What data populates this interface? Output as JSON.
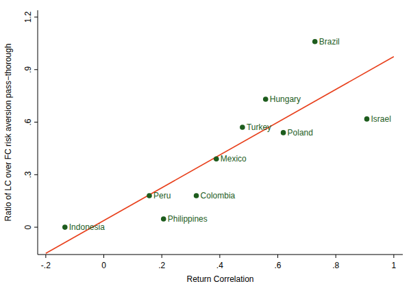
{
  "chart_data": {
    "type": "scatter",
    "x_label": "Return Correlation",
    "y_label": "Ratio of LC over FC risk aversion pass−thorough",
    "xlim": [
      -0.228,
      1.031
    ],
    "ylim": [
      -0.156,
      1.239
    ],
    "xticks": [
      {
        "value": -0.2,
        "label": "-.2"
      },
      0,
      {
        "value": 0.2,
        "label": ".2"
      },
      {
        "value": 0.4,
        "label": ".4"
      },
      {
        "value": 0.6,
        "label": ".6"
      },
      {
        "value": 0.8,
        "label": ".8"
      },
      1
    ],
    "yticks": [
      0,
      {
        "value": 0.3,
        "label": ".3"
      },
      {
        "value": 0.6,
        "label": ".6"
      },
      {
        "value": 0.9,
        "label": ".9"
      },
      1.2
    ],
    "grid": false,
    "series": [
      {
        "type": "scatter",
        "color": "#1d5c1d",
        "marker": "circle",
        "labels": [
          "Indonesia",
          "Peru",
          "Philippines",
          "Colombia",
          "Mexico",
          "Turkey",
          "Hungary",
          "Poland",
          "Israel",
          "Brazil"
        ],
        "x": [
          -0.134,
          0.157,
          0.206,
          0.319,
          0.388,
          0.478,
          0.558,
          0.619,
          0.907,
          0.728
        ],
        "values": [
          0.0,
          0.18,
          0.047,
          0.18,
          0.39,
          0.571,
          0.731,
          0.54,
          0.618,
          1.06
        ]
      },
      {
        "type": "line",
        "color": "#e8401c",
        "line_style": "solid",
        "x": [
          -0.2,
          1
        ],
        "values": [
          -0.149,
          0.974
        ]
      }
    ]
  }
}
